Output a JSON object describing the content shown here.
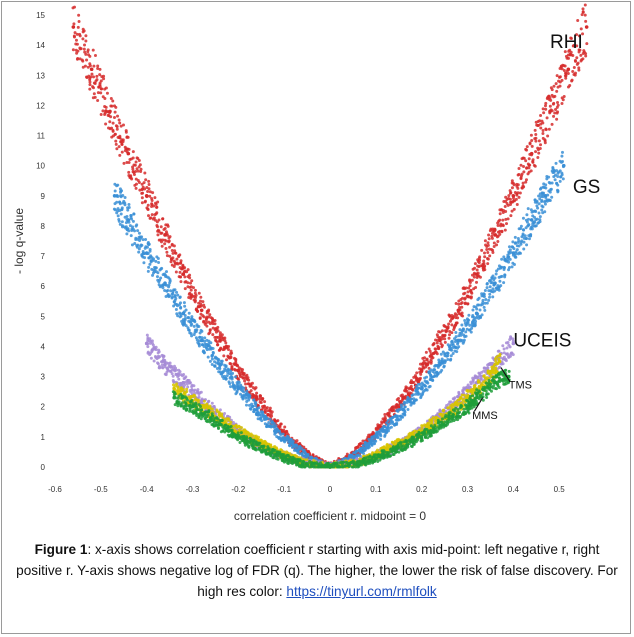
{
  "chart_data": {
    "type": "scatter",
    "xlabel": "correlation coefficient r, midpoint = 0",
    "ylabel": "- log q-value",
    "xlim": [
      -0.6,
      0.6
    ],
    "ylim": [
      0,
      15
    ],
    "x_ticks": [
      -0.6,
      -0.5,
      -0.4,
      -0.3,
      -0.2,
      -0.1,
      0,
      0.1,
      0.2,
      0.3,
      0.4,
      0.5
    ],
    "y_ticks": [
      0,
      1,
      2,
      3,
      4,
      5,
      6,
      7,
      8,
      9,
      10,
      11,
      12,
      13,
      14,
      15
    ],
    "grid": false,
    "legend": "none",
    "series": [
      {
        "name": "RHI",
        "color": "#d62b2b",
        "points": [
          [
            -0.56,
            14.6
          ],
          [
            -0.52,
            13.2
          ],
          [
            -0.48,
            11.8
          ],
          [
            -0.44,
            10.4
          ],
          [
            -0.4,
            9.0
          ],
          [
            -0.36,
            7.7
          ],
          [
            -0.32,
            6.4
          ],
          [
            -0.28,
            5.2
          ],
          [
            -0.24,
            4.2
          ],
          [
            -0.2,
            3.2
          ],
          [
            -0.16,
            2.3
          ],
          [
            -0.12,
            1.5
          ],
          [
            -0.08,
            0.8
          ],
          [
            -0.04,
            0.3
          ],
          [
            0.0,
            0.0
          ],
          [
            0.04,
            0.3
          ],
          [
            0.08,
            0.8
          ],
          [
            0.12,
            1.5
          ],
          [
            0.16,
            2.3
          ],
          [
            0.2,
            3.2
          ],
          [
            0.24,
            4.2
          ],
          [
            0.28,
            5.2
          ],
          [
            0.32,
            6.4
          ],
          [
            0.36,
            7.7
          ],
          [
            0.4,
            9.0
          ],
          [
            0.44,
            10.4
          ],
          [
            0.48,
            11.8
          ],
          [
            0.52,
            13.2
          ],
          [
            0.56,
            14.6
          ]
        ]
      },
      {
        "name": "GS",
        "color": "#3a8fd6",
        "points": [
          [
            -0.47,
            9.0
          ],
          [
            -0.44,
            8.2
          ],
          [
            -0.4,
            7.1
          ],
          [
            -0.36,
            6.1
          ],
          [
            -0.32,
            5.1
          ],
          [
            -0.28,
            4.2
          ],
          [
            -0.24,
            3.4
          ],
          [
            -0.2,
            2.6
          ],
          [
            -0.16,
            1.9
          ],
          [
            -0.12,
            1.2
          ],
          [
            -0.08,
            0.7
          ],
          [
            -0.04,
            0.2
          ],
          [
            0.0,
            0.0
          ],
          [
            0.04,
            0.2
          ],
          [
            0.08,
            0.7
          ],
          [
            0.12,
            1.2
          ],
          [
            0.16,
            1.9
          ],
          [
            0.2,
            2.6
          ],
          [
            0.24,
            3.4
          ],
          [
            0.28,
            4.2
          ],
          [
            0.32,
            5.1
          ],
          [
            0.36,
            6.1
          ],
          [
            0.4,
            7.1
          ],
          [
            0.44,
            8.2
          ],
          [
            0.47,
            9.0
          ],
          [
            0.51,
            10.0
          ]
        ]
      },
      {
        "name": "UCEIS",
        "color": "#a68bd6",
        "points": [
          [
            -0.4,
            4.1
          ],
          [
            -0.36,
            3.4
          ],
          [
            -0.32,
            2.8
          ],
          [
            -0.28,
            2.2
          ],
          [
            -0.24,
            1.7
          ],
          [
            -0.2,
            1.2
          ],
          [
            -0.16,
            0.8
          ],
          [
            -0.12,
            0.5
          ],
          [
            -0.08,
            0.25
          ],
          [
            -0.04,
            0.1
          ],
          [
            0.0,
            0.0
          ],
          [
            0.04,
            0.1
          ],
          [
            0.08,
            0.25
          ],
          [
            0.12,
            0.5
          ],
          [
            0.16,
            0.8
          ],
          [
            0.2,
            1.2
          ],
          [
            0.24,
            1.7
          ],
          [
            0.28,
            2.2
          ],
          [
            0.32,
            2.8
          ],
          [
            0.36,
            3.4
          ],
          [
            0.4,
            4.1
          ]
        ]
      },
      {
        "name": "TMS",
        "color": "#d8c400",
        "points": [
          [
            -0.34,
            2.6
          ],
          [
            -0.3,
            2.2
          ],
          [
            -0.26,
            1.8
          ],
          [
            -0.22,
            1.4
          ],
          [
            -0.18,
            1.0
          ],
          [
            -0.14,
            0.7
          ],
          [
            -0.1,
            0.4
          ],
          [
            -0.06,
            0.15
          ],
          [
            0.0,
            0.0
          ],
          [
            0.06,
            0.15
          ],
          [
            0.1,
            0.4
          ],
          [
            0.14,
            0.7
          ],
          [
            0.18,
            1.0
          ],
          [
            0.22,
            1.4
          ],
          [
            0.26,
            1.8
          ],
          [
            0.3,
            2.3
          ],
          [
            0.34,
            2.8
          ],
          [
            0.37,
            3.5
          ]
        ]
      },
      {
        "name": "MMS",
        "color": "#1f9e3a",
        "points": [
          [
            -0.34,
            2.3
          ],
          [
            -0.3,
            2.0
          ],
          [
            -0.26,
            1.6
          ],
          [
            -0.22,
            1.2
          ],
          [
            -0.18,
            0.85
          ],
          [
            -0.14,
            0.55
          ],
          [
            -0.1,
            0.3
          ],
          [
            -0.06,
            0.1
          ],
          [
            0.0,
            0.0
          ],
          [
            0.06,
            0.1
          ],
          [
            0.1,
            0.3
          ],
          [
            0.14,
            0.55
          ],
          [
            0.18,
            0.85
          ],
          [
            0.22,
            1.2
          ],
          [
            0.26,
            1.6
          ],
          [
            0.3,
            2.0
          ],
          [
            0.32,
            2.3
          ],
          [
            0.36,
            2.8
          ],
          [
            0.39,
            3.0
          ]
        ]
      }
    ],
    "annotations": [
      {
        "text": "RHI",
        "x": 0.48,
        "y": 13.9
      },
      {
        "text": "GS",
        "x": 0.53,
        "y": 9.1
      },
      {
        "text": "UCEIS",
        "x": 0.4,
        "y": 4.0
      },
      {
        "text": "TMS",
        "x": 0.39,
        "y": 2.6
      },
      {
        "text": "MMS",
        "x": 0.31,
        "y": 1.6
      }
    ]
  },
  "caption": {
    "label": "Figure 1",
    "text": ":  x-axis shows correlation coefficient r starting with axis mid-point: left negative r, right positive r. Y-axis shows negative log of FDR (q). The higher, the lower the risk of false discovery. For high res color: ",
    "link": "https://tinyurl.com/rmlfolk"
  }
}
